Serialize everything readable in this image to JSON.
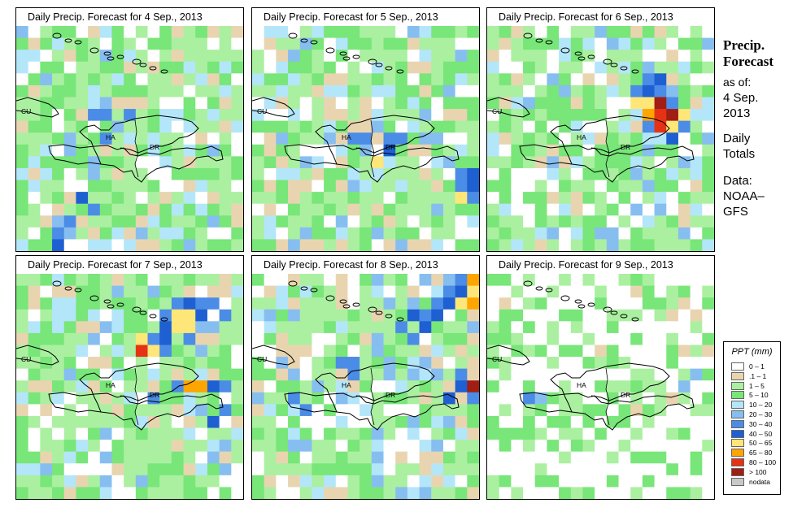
{
  "panels": [
    {
      "title": "Daily Precip. Forecast for  4 Sep., 2013",
      "seed": 41,
      "hot": [
        {
          "c": 6,
          "r": 7,
          "v": 6
        },
        {
          "c": 7,
          "r": 7,
          "v": 6
        },
        {
          "c": 7,
          "r": 6,
          "v": 5
        },
        {
          "c": 4,
          "r": 9,
          "v": 5
        },
        {
          "c": 4,
          "r": 10,
          "v": 5
        },
        {
          "c": 3,
          "r": 16,
          "v": 5
        },
        {
          "c": 3,
          "r": 17,
          "v": 6
        },
        {
          "c": 4,
          "r": 16,
          "v": 6
        },
        {
          "c": 5,
          "r": 14,
          "v": 7
        },
        {
          "c": 6,
          "r": 15,
          "v": 6
        },
        {
          "c": 3,
          "r": 18,
          "v": 7
        },
        {
          "c": 7,
          "r": 9,
          "v": 6
        },
        {
          "c": 8,
          "r": 8,
          "v": 5
        },
        {
          "c": 9,
          "r": 7,
          "v": 6
        }
      ]
    },
    {
      "title": "Daily Precip. Forecast for  5 Sep., 2013",
      "seed": 52,
      "hot": [
        {
          "c": 12,
          "r": 9,
          "v": 6
        },
        {
          "c": 11,
          "r": 9,
          "v": 6
        },
        {
          "c": 11,
          "r": 10,
          "v": 7
        },
        {
          "c": 10,
          "r": 8,
          "v": 5
        },
        {
          "c": 8,
          "r": 9,
          "v": 6
        },
        {
          "c": 9,
          "r": 9,
          "v": 6
        },
        {
          "c": 9,
          "r": 10,
          "v": 5
        },
        {
          "c": 10,
          "r": 11,
          "v": 8
        },
        {
          "c": 16,
          "r": 11,
          "v": 5
        },
        {
          "c": 17,
          "r": 12,
          "v": 6
        },
        {
          "c": 17,
          "r": 13,
          "v": 6
        },
        {
          "c": 18,
          "r": 13,
          "v": 7
        },
        {
          "c": 18,
          "r": 14,
          "v": 6
        },
        {
          "c": 17,
          "r": 14,
          "v": 8
        },
        {
          "c": 18,
          "r": 12,
          "v": 7
        }
      ]
    },
    {
      "title": "Daily Precip. Forecast for  6 Sep., 2013",
      "seed": 63,
      "hot": [
        {
          "c": 13,
          "r": 4,
          "v": 6
        },
        {
          "c": 14,
          "r": 4,
          "v": 7
        },
        {
          "c": 12,
          "r": 5,
          "v": 6
        },
        {
          "c": 13,
          "r": 5,
          "v": 7
        },
        {
          "c": 14,
          "r": 5,
          "v": 6
        },
        {
          "c": 12,
          "r": 6,
          "v": 8
        },
        {
          "c": 13,
          "r": 6,
          "v": 8
        },
        {
          "c": 14,
          "r": 6,
          "v": 11
        },
        {
          "c": 15,
          "r": 6,
          "v": 6
        },
        {
          "c": 13,
          "r": 7,
          "v": 9
        },
        {
          "c": 14,
          "r": 7,
          "v": 10
        },
        {
          "c": 15,
          "r": 7,
          "v": 11
        },
        {
          "c": 16,
          "r": 7,
          "v": 8
        },
        {
          "c": 14,
          "r": 8,
          "v": 10
        },
        {
          "c": 15,
          "r": 8,
          "v": 8
        },
        {
          "c": 16,
          "r": 8,
          "v": 6
        },
        {
          "c": 15,
          "r": 9,
          "v": 7
        },
        {
          "c": 13,
          "r": 8,
          "v": 6
        }
      ]
    },
    {
      "title": "Daily Precip. Forecast for  7 Sep., 2013",
      "seed": 74,
      "hot": [
        {
          "c": 13,
          "r": 2,
          "v": 6
        },
        {
          "c": 14,
          "r": 2,
          "v": 7
        },
        {
          "c": 15,
          "r": 2,
          "v": 6
        },
        {
          "c": 12,
          "r": 3,
          "v": 6
        },
        {
          "c": 13,
          "r": 3,
          "v": 8
        },
        {
          "c": 14,
          "r": 3,
          "v": 8
        },
        {
          "c": 15,
          "r": 3,
          "v": 7
        },
        {
          "c": 12,
          "r": 4,
          "v": 7
        },
        {
          "c": 13,
          "r": 4,
          "v": 8
        },
        {
          "c": 14,
          "r": 4,
          "v": 8
        },
        {
          "c": 11,
          "r": 5,
          "v": 6
        },
        {
          "c": 12,
          "r": 5,
          "v": 7
        },
        {
          "c": 10,
          "r": 5,
          "v": 8
        },
        {
          "c": 10,
          "r": 6,
          "v": 10
        },
        {
          "c": 11,
          "r": 6,
          "v": 8
        },
        {
          "c": 12,
          "r": 6,
          "v": 6
        },
        {
          "c": 16,
          "r": 2,
          "v": 6
        },
        {
          "c": 17,
          "r": 3,
          "v": 6
        },
        {
          "c": 14,
          "r": 9,
          "v": 9
        },
        {
          "c": 15,
          "r": 9,
          "v": 9
        },
        {
          "c": 16,
          "r": 9,
          "v": 7
        },
        {
          "c": 13,
          "r": 9,
          "v": 6
        },
        {
          "c": 17,
          "r": 9,
          "v": 6
        },
        {
          "c": 11,
          "r": 10,
          "v": 6
        },
        {
          "c": 14,
          "r": 5,
          "v": 6
        },
        {
          "c": 16,
          "r": 12,
          "v": 7
        },
        {
          "c": 17,
          "r": 11,
          "v": 6
        }
      ]
    },
    {
      "title": "Daily Precip. Forecast for  8 Sep., 2013",
      "seed": 85,
      "hot": [
        {
          "c": 17,
          "r": 0,
          "v": 6
        },
        {
          "c": 18,
          "r": 0,
          "v": 9
        },
        {
          "c": 18,
          "r": 1,
          "v": 8
        },
        {
          "c": 17,
          "r": 1,
          "v": 7
        },
        {
          "c": 18,
          "r": 2,
          "v": 9
        },
        {
          "c": 17,
          "r": 2,
          "v": 8
        },
        {
          "c": 16,
          "r": 1,
          "v": 6
        },
        {
          "c": 16,
          "r": 2,
          "v": 7
        },
        {
          "c": 15,
          "r": 2,
          "v": 6
        },
        {
          "c": 15,
          "r": 3,
          "v": 7
        },
        {
          "c": 14,
          "r": 3,
          "v": 6
        },
        {
          "c": 13,
          "r": 3,
          "v": 7
        },
        {
          "c": 14,
          "r": 4,
          "v": 7
        },
        {
          "c": 12,
          "r": 4,
          "v": 6
        },
        {
          "c": 13,
          "r": 5,
          "v": 6
        },
        {
          "c": 18,
          "r": 9,
          "v": 11
        },
        {
          "c": 17,
          "r": 9,
          "v": 7
        },
        {
          "c": 18,
          "r": 10,
          "v": 6
        },
        {
          "c": 17,
          "r": 8,
          "v": 6
        },
        {
          "c": 16,
          "r": 10,
          "v": 7
        },
        {
          "c": 8,
          "r": 7,
          "v": 6
        },
        {
          "c": 7,
          "r": 7,
          "v": 6
        },
        {
          "c": 8,
          "r": 8,
          "v": 6
        },
        {
          "c": 3,
          "r": 10,
          "v": 6
        },
        {
          "c": 4,
          "r": 11,
          "v": 6
        }
      ]
    },
    {
      "title": "Daily Precip. Forecast for  9 Sep., 2013",
      "seed": 96,
      "quiet": true,
      "hot": [
        {
          "c": 3,
          "r": 10,
          "v": 6
        },
        {
          "c": 4,
          "r": 10,
          "v": 5
        },
        {
          "c": 16,
          "r": 9,
          "v": 5
        },
        {
          "c": 17,
          "r": 8,
          "v": 5
        }
      ]
    }
  ],
  "map_labels": {
    "cu": "CU",
    "ha": "HA",
    "dr": "DR"
  },
  "sidebar": {
    "heading1": "Precip.",
    "heading2": "Forecast",
    "asof": "as of:",
    "date1": "4 Sep.",
    "date2": "2013",
    "daily1": "Daily",
    "daily2": "Totals",
    "data1": "Data:",
    "data2": "NOAA–",
    "data3": "GFS"
  },
  "legend": {
    "title": "PPT (mm)",
    "items": [
      {
        "label": "0 – 1",
        "color": "#ffffff"
      },
      {
        "label": ".1 – 1",
        "color": "#e8d5b0"
      },
      {
        "label": "1 – 5",
        "color": "#aaf0a0"
      },
      {
        "label": "5 – 10",
        "color": "#78e678"
      },
      {
        "label": "10 – 20",
        "color": "#b4e6fa"
      },
      {
        "label": "20 – 30",
        "color": "#87bef0"
      },
      {
        "label": "30 – 40",
        "color": "#4b8ce6"
      },
      {
        "label": "40 – 50",
        "color": "#1e5fd2"
      },
      {
        "label": "50 – 65",
        "color": "#ffe678"
      },
      {
        "label": "65 – 80",
        "color": "#ffa500"
      },
      {
        "label": "80 – 100",
        "color": "#e63214"
      },
      {
        "label": "> 100",
        "color": "#a01e14"
      },
      {
        "label": "nodata",
        "color": "#c8c8c8"
      }
    ]
  }
}
